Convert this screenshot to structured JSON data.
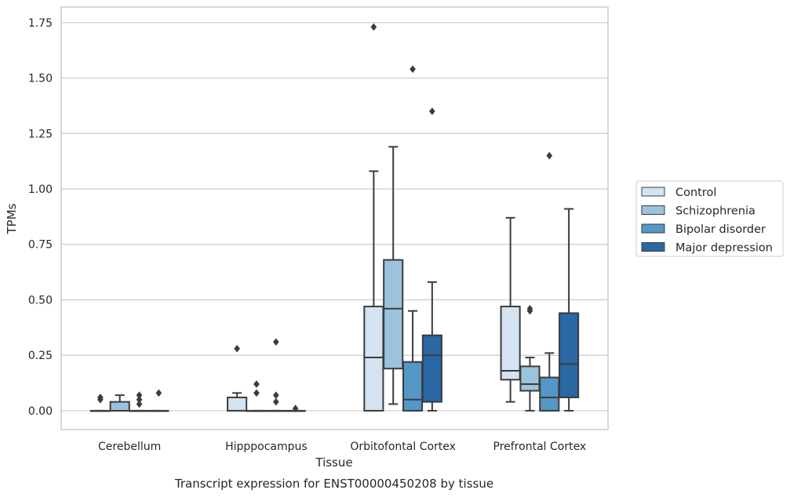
{
  "chart_data": {
    "type": "box",
    "title": "",
    "caption": "Transcript expression for ENST00000450208 by tissue",
    "xlabel": "Tissue",
    "ylabel": "TPMs",
    "ylim": [
      -0.085,
      1.82
    ],
    "yticks": [
      "0.00",
      "0.25",
      "0.50",
      "0.75",
      "1.00",
      "1.25",
      "1.50",
      "1.75"
    ],
    "ytick_values": [
      0,
      0.25,
      0.5,
      0.75,
      1.0,
      1.25,
      1.5,
      1.75
    ],
    "grid": "horizontal",
    "legend_position": "outside-right",
    "categories": [
      "Cerebellum",
      "Hipppocampus",
      "Orbitofontal Cortex",
      "Prefrontal Cortex"
    ],
    "series": [
      {
        "name": "Control",
        "color": "#d4e3f1",
        "boxes": [
          {
            "q1": 0,
            "median": 0,
            "q3": 0,
            "whislo": 0,
            "whishi": 0,
            "fliers": [
              0.05,
              0.06
            ]
          },
          {
            "q1": 0,
            "median": 0,
            "q3": 0.06,
            "whislo": 0,
            "whishi": 0.08,
            "fliers": [
              0.28
            ]
          },
          {
            "q1": 0,
            "median": 0.24,
            "q3": 0.47,
            "whislo": 0,
            "whishi": 1.08,
            "fliers": [
              1.73
            ]
          },
          {
            "q1": 0.14,
            "median": 0.18,
            "q3": 0.47,
            "whislo": 0.04,
            "whishi": 0.87,
            "fliers": []
          }
        ]
      },
      {
        "name": "Schizophrenia",
        "color": "#9cc3dc",
        "boxes": [
          {
            "q1": 0,
            "median": 0,
            "q3": 0.04,
            "whislo": 0,
            "whishi": 0.07,
            "fliers": []
          },
          {
            "q1": 0,
            "median": 0,
            "q3": 0,
            "whislo": 0,
            "whishi": 0,
            "fliers": [
              0.08,
              0.12
            ]
          },
          {
            "q1": 0.19,
            "median": 0.46,
            "q3": 0.68,
            "whislo": 0.03,
            "whishi": 1.19,
            "fliers": []
          },
          {
            "q1": 0.09,
            "median": 0.12,
            "q3": 0.2,
            "whislo": 0,
            "whishi": 0.24,
            "fliers": [
              0.45,
              0.46
            ]
          }
        ]
      },
      {
        "name": "Bipolar disorder",
        "color": "#5496c5",
        "boxes": [
          {
            "q1": 0,
            "median": 0,
            "q3": 0,
            "whislo": 0,
            "whishi": 0,
            "fliers": [
              0.03,
              0.05,
              0.07
            ]
          },
          {
            "q1": 0,
            "median": 0,
            "q3": 0,
            "whislo": 0,
            "whishi": 0,
            "fliers": [
              0.04,
              0.07,
              0.31
            ]
          },
          {
            "q1": 0,
            "median": 0.05,
            "q3": 0.22,
            "whislo": 0,
            "whishi": 0.45,
            "fliers": [
              1.54
            ]
          },
          {
            "q1": 0,
            "median": 0.06,
            "q3": 0.15,
            "whislo": 0,
            "whishi": 0.26,
            "fliers": [
              1.15
            ]
          }
        ]
      },
      {
        "name": "Major depression",
        "color": "#2a67a5",
        "boxes": [
          {
            "q1": 0,
            "median": 0,
            "q3": 0,
            "whislo": 0,
            "whishi": 0,
            "fliers": [
              0.08
            ]
          },
          {
            "q1": 0,
            "median": 0,
            "q3": 0,
            "whislo": 0,
            "whishi": 0,
            "fliers": [
              0.01
            ]
          },
          {
            "q1": 0.04,
            "median": 0.25,
            "q3": 0.34,
            "whislo": 0,
            "whishi": 0.58,
            "fliers": [
              1.35
            ]
          },
          {
            "q1": 0.06,
            "median": 0.21,
            "q3": 0.44,
            "whislo": 0,
            "whishi": 0.91,
            "fliers": []
          }
        ]
      }
    ]
  }
}
